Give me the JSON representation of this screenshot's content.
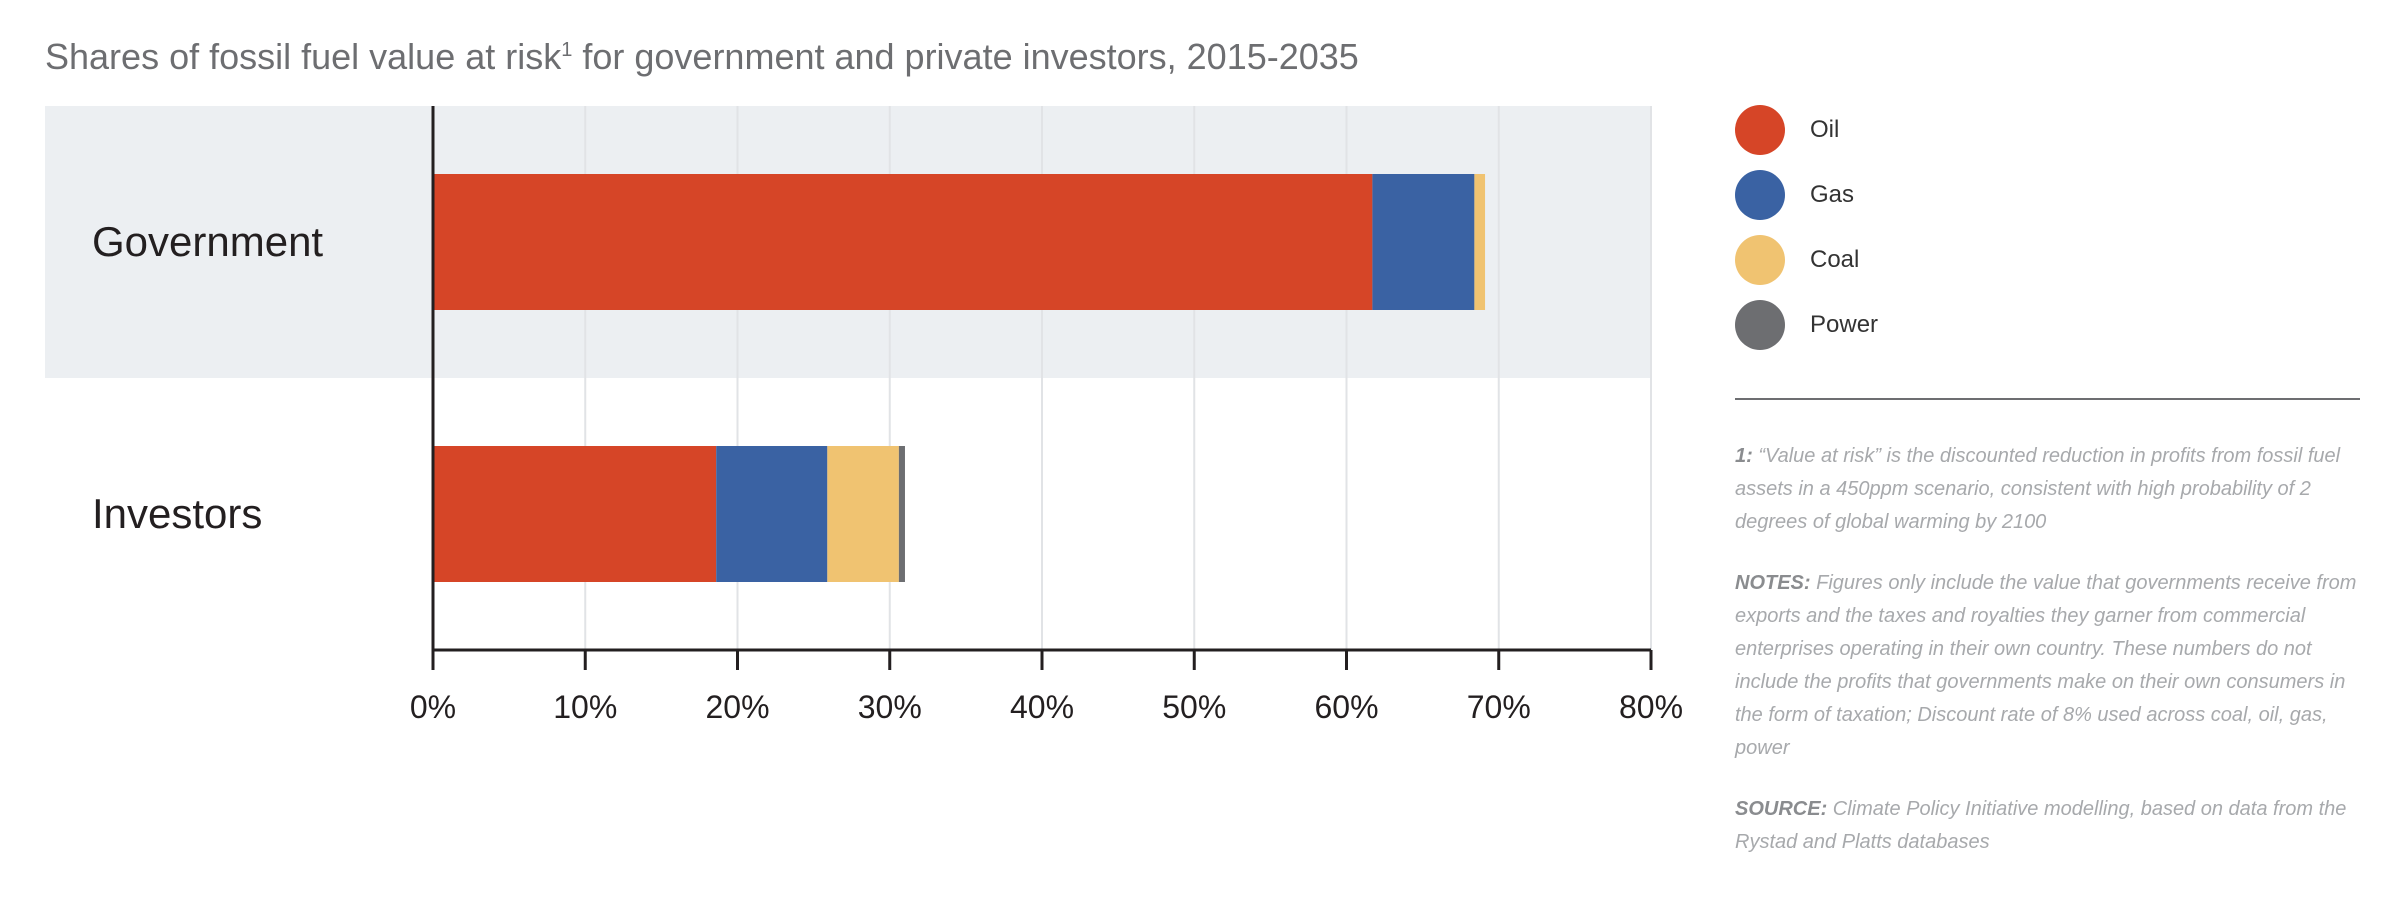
{
  "title": {
    "main": "Shares of fossil fuel value at risk",
    "sup": "1",
    "rest": " for government and private investors, 2015-2035"
  },
  "chart_data": {
    "type": "bar",
    "orientation": "horizontal",
    "stacked": true,
    "categories": [
      "Government",
      "Investors"
    ],
    "series": [
      {
        "name": "Oil",
        "color": "#d64527",
        "values": [
          61.7,
          18.6
        ]
      },
      {
        "name": "Gas",
        "color": "#3a62a3",
        "values": [
          6.7,
          7.3
        ]
      },
      {
        "name": "Coal",
        "color": "#f0c371",
        "values": [
          0.7,
          4.7
        ]
      },
      {
        "name": "Power",
        "color": "#6d6e71",
        "values": [
          0.0,
          0.4
        ]
      }
    ],
    "xlim": [
      0,
      80
    ],
    "xticks": [
      "0%",
      "10%",
      "20%",
      "30%",
      "40%",
      "50%",
      "60%",
      "70%",
      "80%"
    ],
    "xlabel": "",
    "ylabel": "",
    "grid": "vertical",
    "highlight_row": "Government",
    "legend_position": "right"
  },
  "legend": [
    {
      "label": "Oil",
      "color": "#d64527"
    },
    {
      "label": "Gas",
      "color": "#3a62a3"
    },
    {
      "label": "Coal",
      "color": "#f0c371"
    },
    {
      "label": "Power",
      "color": "#6d6e71"
    }
  ],
  "notes": {
    "footnote_label": "1:",
    "footnote_text": " “Value at risk” is the discounted reduction in profits from fossil fuel assets in a 450ppm scenario, consistent with high probability of 2 degrees of global warming by 2100",
    "notes_label": "NOTES:",
    "notes_text": "  Figures only include the value that governments receive from exports and the taxes and royalties they garner from commercial enterprises operating in their own country. These numbers do not include the profits that governments make on their own consumers in the form of taxation; Discount rate of 8% used across coal, oil, gas, power",
    "source_label": "SOURCE:",
    "source_text": " Climate Policy Initiative modelling, based on data from the Rystad and Platts databases"
  }
}
